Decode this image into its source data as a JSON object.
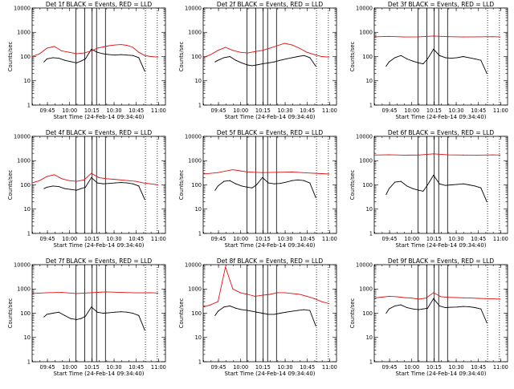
{
  "figure": {
    "colors": {
      "events": "#000000",
      "lld": "#e01010"
    }
  },
  "chart_data": [
    {
      "type": "line",
      "title": "Det 1f BLACK = Events, RED = LLD",
      "xlabel": "Start Time (24-Feb-14 09:34:40)",
      "ylabel": "Counts/sec",
      "yscale": "log",
      "ylim": [
        1,
        10000
      ],
      "yticks": [
        "1",
        "10",
        "100",
        "1000",
        "10000"
      ],
      "xticks": [
        "09:45",
        "10:00",
        "10:15",
        "10:30",
        "10:45",
        "11:00"
      ],
      "xlim_minutes": [
        0,
        90
      ],
      "solid_markers_min": [
        29.5,
        35.5,
        40.5,
        43.5,
        49.5
      ],
      "dotted_markers_min": [
        76.5,
        84.5
      ],
      "grid": false,
      "series": [
        {
          "name": "Events",
          "x": [
            8,
            10,
            14,
            18,
            22,
            26,
            30,
            33,
            36,
            40,
            44,
            48,
            52,
            56,
            60,
            64,
            68,
            72,
            76
          ],
          "y": [
            60,
            80,
            90,
            85,
            70,
            62,
            55,
            65,
            80,
            200,
            150,
            130,
            120,
            115,
            120,
            115,
            110,
            90,
            25
          ]
        },
        {
          "name": "LLD",
          "x": [
            0,
            5,
            10,
            15,
            20,
            25,
            30,
            35,
            40,
            44,
            48,
            52,
            56,
            60,
            64,
            68,
            72,
            76,
            80,
            85
          ],
          "y": [
            100,
            130,
            220,
            260,
            170,
            150,
            130,
            140,
            170,
            220,
            250,
            280,
            300,
            310,
            290,
            240,
            150,
            110,
            100,
            95
          ]
        }
      ]
    },
    {
      "type": "line",
      "title": "Det 2f BLACK = Events, RED = LLD",
      "xlabel": "Start Time (24-Feb-14 09:34:40)",
      "ylabel": "Counts/sec",
      "yscale": "log",
      "ylim": [
        1,
        10000
      ],
      "yticks": [
        "1",
        "10",
        "100",
        "1000",
        "10000"
      ],
      "xticks": [
        "09:45",
        "10:00",
        "10:15",
        "10:30",
        "10:45",
        "11:00"
      ],
      "xlim_minutes": [
        0,
        90
      ],
      "solid_markers_min": [
        29.5,
        35.5,
        40.5,
        43.5,
        49.5
      ],
      "dotted_markers_min": [
        76.5,
        84.5
      ],
      "grid": false,
      "series": [
        {
          "name": "Events",
          "x": [
            8,
            10,
            14,
            18,
            22,
            26,
            30,
            33,
            36,
            40,
            44,
            48,
            52,
            56,
            60,
            64,
            68,
            72,
            76
          ],
          "y": [
            60,
            70,
            90,
            100,
            70,
            55,
            45,
            42,
            45,
            50,
            55,
            60,
            70,
            80,
            90,
            100,
            110,
            90,
            40
          ]
        },
        {
          "name": "LLD",
          "x": [
            0,
            5,
            10,
            15,
            20,
            25,
            30,
            35,
            40,
            45,
            50,
            55,
            60,
            65,
            70,
            75,
            80,
            85
          ],
          "y": [
            90,
            120,
            180,
            240,
            180,
            150,
            140,
            160,
            180,
            220,
            280,
            350,
            300,
            220,
            150,
            120,
            100,
            95
          ]
        }
      ]
    },
    {
      "type": "line",
      "title": "Det 3f BLACK = Events, RED = LLD",
      "xlabel": "Start Time (24-Feb-14 09:34:40)",
      "ylabel": "Counts/sec",
      "yscale": "log",
      "ylim": [
        1,
        10000
      ],
      "yticks": [
        "1",
        "10",
        "100",
        "1000",
        "10000"
      ],
      "xticks": [
        "09:45",
        "10:00",
        "10:15",
        "10:30",
        "10:45",
        "11:00"
      ],
      "xlim_minutes": [
        0,
        90
      ],
      "solid_markers_min": [
        29.5,
        35.5,
        40.5,
        43.5,
        49.5
      ],
      "dotted_markers_min": [
        76.5,
        84.5
      ],
      "grid": false,
      "series": [
        {
          "name": "Events",
          "x": [
            8,
            10,
            14,
            18,
            22,
            26,
            30,
            33,
            36,
            40,
            44,
            48,
            52,
            56,
            60,
            64,
            68,
            72,
            76
          ],
          "y": [
            40,
            60,
            90,
            110,
            80,
            65,
            55,
            50,
            80,
            200,
            110,
            90,
            85,
            90,
            100,
            90,
            80,
            70,
            20
          ]
        },
        {
          "name": "LLD",
          "x": [
            0,
            10,
            20,
            30,
            40,
            50,
            60,
            70,
            80,
            85
          ],
          "y": [
            650,
            680,
            640,
            650,
            700,
            660,
            640,
            650,
            660,
            640
          ]
        }
      ]
    },
    {
      "type": "line",
      "title": "Det 4f BLACK = Events, RED = LLD",
      "xlabel": "Start Time (24-Feb-14 09:34:40)",
      "ylabel": "Counts/sec",
      "yscale": "log",
      "ylim": [
        1,
        10000
      ],
      "yticks": [
        "1",
        "10",
        "100",
        "1000",
        "10000"
      ],
      "xticks": [
        "09:45",
        "10:00",
        "10:15",
        "10:30",
        "10:45",
        "11:00"
      ],
      "xlim_minutes": [
        0,
        90
      ],
      "solid_markers_min": [
        29.5,
        35.5,
        40.5,
        43.5,
        49.5
      ],
      "dotted_markers_min": [
        76.5,
        84.5
      ],
      "grid": false,
      "series": [
        {
          "name": "Events",
          "x": [
            8,
            10,
            14,
            18,
            22,
            26,
            30,
            33,
            36,
            40,
            44,
            48,
            52,
            56,
            60,
            64,
            68,
            72,
            76
          ],
          "y": [
            70,
            80,
            90,
            85,
            70,
            65,
            60,
            70,
            80,
            200,
            120,
            110,
            115,
            120,
            125,
            120,
            110,
            90,
            25
          ]
        },
        {
          "name": "LLD",
          "x": [
            0,
            5,
            10,
            15,
            20,
            25,
            30,
            35,
            40,
            45,
            50,
            55,
            60,
            65,
            70,
            75,
            80,
            85
          ],
          "y": [
            120,
            150,
            220,
            260,
            180,
            150,
            140,
            160,
            300,
            200,
            180,
            170,
            160,
            150,
            140,
            120,
            110,
            100
          ]
        }
      ]
    },
    {
      "type": "line",
      "title": "Det 5f BLACK = Events, RED = LLD",
      "xlabel": "Start Time (24-Feb-14 09:34:40)",
      "ylabel": "Counts/sec",
      "yscale": "log",
      "ylim": [
        1,
        10000
      ],
      "yticks": [
        "1",
        "10",
        "100",
        "1000",
        "10000"
      ],
      "xticks": [
        "09:45",
        "10:00",
        "10:15",
        "10:30",
        "10:45",
        "11:00"
      ],
      "xlim_minutes": [
        0,
        90
      ],
      "solid_markers_min": [
        29.5,
        35.5,
        40.5,
        43.5,
        49.5
      ],
      "dotted_markers_min": [
        76.5,
        84.5
      ],
      "grid": false,
      "series": [
        {
          "name": "Events",
          "x": [
            8,
            10,
            14,
            18,
            22,
            26,
            30,
            33,
            36,
            40,
            44,
            48,
            52,
            56,
            60,
            64,
            68,
            72,
            76
          ],
          "y": [
            60,
            90,
            140,
            150,
            110,
            90,
            80,
            75,
            100,
            200,
            120,
            110,
            115,
            130,
            150,
            160,
            150,
            120,
            30
          ]
        },
        {
          "name": "LLD",
          "x": [
            0,
            10,
            20,
            25,
            30,
            40,
            50,
            60,
            70,
            80,
            85
          ],
          "y": [
            280,
            320,
            420,
            380,
            340,
            320,
            330,
            340,
            310,
            290,
            280
          ]
        }
      ]
    },
    {
      "type": "line",
      "title": "Det 6f BLACK = Events, RED = LLD",
      "xlabel": "Start Time (24-Feb-14 09:34:40)",
      "ylabel": "Counts/sec",
      "yscale": "log",
      "ylim": [
        1,
        10000
      ],
      "yticks": [
        "1",
        "10",
        "100",
        "1000",
        "10000"
      ],
      "xticks": [
        "09:45",
        "10:00",
        "10:15",
        "10:30",
        "10:45",
        "11:00"
      ],
      "xlim_minutes": [
        0,
        90
      ],
      "solid_markers_min": [
        29.5,
        35.5,
        40.5,
        43.5,
        49.5
      ],
      "dotted_markers_min": [
        76.5,
        84.5
      ],
      "grid": false,
      "series": [
        {
          "name": "Events",
          "x": [
            8,
            10,
            14,
            18,
            22,
            26,
            30,
            33,
            36,
            40,
            44,
            48,
            52,
            56,
            60,
            64,
            68,
            72,
            76
          ],
          "y": [
            40,
            70,
            130,
            140,
            90,
            70,
            60,
            55,
            100,
            250,
            110,
            95,
            100,
            105,
            110,
            100,
            90,
            75,
            20
          ]
        },
        {
          "name": "LLD",
          "x": [
            0,
            10,
            20,
            30,
            40,
            50,
            60,
            70,
            80,
            85
          ],
          "y": [
            1700,
            1750,
            1680,
            1700,
            1900,
            1720,
            1700,
            1690,
            1720,
            1700
          ]
        }
      ]
    },
    {
      "type": "line",
      "title": "Det 7f BLACK = Events, RED = LLD",
      "xlabel": "Start Time (24-Feb-14 09:34:40)",
      "ylabel": "Counts/sec",
      "yscale": "log",
      "ylim": [
        1,
        10000
      ],
      "yticks": [
        "1",
        "10",
        "100",
        "1000",
        "10000"
      ],
      "xticks": [
        "09:45",
        "10:00",
        "10:15",
        "10:30",
        "10:45",
        "11:00"
      ],
      "xlim_minutes": [
        0,
        90
      ],
      "solid_markers_min": [
        29.5,
        35.5,
        40.5,
        43.5,
        49.5
      ],
      "dotted_markers_min": [
        76.5,
        84.5
      ],
      "grid": false,
      "series": [
        {
          "name": "Events",
          "x": [
            8,
            10,
            14,
            18,
            22,
            26,
            30,
            33,
            36,
            40,
            44,
            48,
            52,
            56,
            60,
            64,
            68,
            72,
            76
          ],
          "y": [
            70,
            90,
            100,
            110,
            80,
            60,
            55,
            60,
            75,
            180,
            110,
            100,
            105,
            110,
            115,
            110,
            100,
            80,
            20
          ]
        },
        {
          "name": "LLD",
          "x": [
            0,
            10,
            20,
            30,
            40,
            50,
            60,
            70,
            80,
            85
          ],
          "y": [
            650,
            700,
            720,
            650,
            700,
            760,
            720,
            690,
            700,
            680
          ]
        }
      ]
    },
    {
      "type": "line",
      "title": "Det 8f BLACK = Events, RED = LLD",
      "xlabel": "Start Time (24-Feb-14 09:34:40)",
      "ylabel": "Counts/sec",
      "yscale": "log",
      "ylim": [
        1,
        10000
      ],
      "yticks": [
        "1",
        "10",
        "100",
        "1000",
        "10000"
      ],
      "xticks": [
        "09:45",
        "10:00",
        "10:15",
        "10:30",
        "10:45",
        "11:00"
      ],
      "xlim_minutes": [
        0,
        90
      ],
      "solid_markers_min": [
        29.5,
        35.5,
        40.5,
        43.5,
        49.5
      ],
      "dotted_markers_min": [
        76.5,
        84.5
      ],
      "grid": false,
      "series": [
        {
          "name": "Events",
          "x": [
            8,
            10,
            14,
            18,
            22,
            26,
            30,
            33,
            36,
            40,
            44,
            48,
            52,
            56,
            60,
            64,
            68,
            72,
            76
          ],
          "y": [
            80,
            120,
            180,
            200,
            160,
            140,
            130,
            120,
            110,
            100,
            90,
            90,
            100,
            110,
            120,
            130,
            140,
            130,
            30
          ]
        },
        {
          "name": "LLD",
          "x": [
            0,
            5,
            10,
            15,
            20,
            25,
            30,
            35,
            40,
            45,
            50,
            55,
            60,
            65,
            70,
            75,
            80,
            85
          ],
          "y": [
            180,
            220,
            300,
            8000,
            1000,
            700,
            600,
            500,
            550,
            600,
            700,
            700,
            650,
            600,
            500,
            400,
            300,
            250
          ]
        }
      ]
    },
    {
      "type": "line",
      "title": "Det 9f BLACK = Events, RED = LLD",
      "xlabel": "Start Time (24-Feb-14 09:34:40)",
      "ylabel": "Counts/sec",
      "yscale": "log",
      "ylim": [
        1,
        10000
      ],
      "yticks": [
        "1",
        "10",
        "100",
        "1000",
        "10000"
      ],
      "xticks": [
        "09:45",
        "10:00",
        "10:15",
        "10:30",
        "10:45",
        "11:00"
      ],
      "xlim_minutes": [
        0,
        90
      ],
      "solid_markers_min": [
        29.5,
        35.5,
        40.5,
        43.5,
        49.5
      ],
      "dotted_markers_min": [
        76.5,
        84.5
      ],
      "grid": false,
      "series": [
        {
          "name": "Events",
          "x": [
            8,
            10,
            14,
            18,
            22,
            26,
            30,
            33,
            36,
            40,
            44,
            48,
            52,
            56,
            60,
            64,
            68,
            72,
            76
          ],
          "y": [
            100,
            150,
            200,
            220,
            170,
            150,
            140,
            150,
            160,
            400,
            200,
            170,
            175,
            180,
            190,
            185,
            170,
            150,
            40
          ]
        },
        {
          "name": "LLD",
          "x": [
            0,
            5,
            10,
            15,
            20,
            25,
            30,
            35,
            40,
            45,
            50,
            55,
            60,
            65,
            70,
            75,
            80,
            85
          ],
          "y": [
            420,
            460,
            500,
            480,
            440,
            420,
            380,
            420,
            700,
            480,
            450,
            440,
            430,
            420,
            410,
            400,
            390,
            380
          ]
        }
      ]
    }
  ]
}
